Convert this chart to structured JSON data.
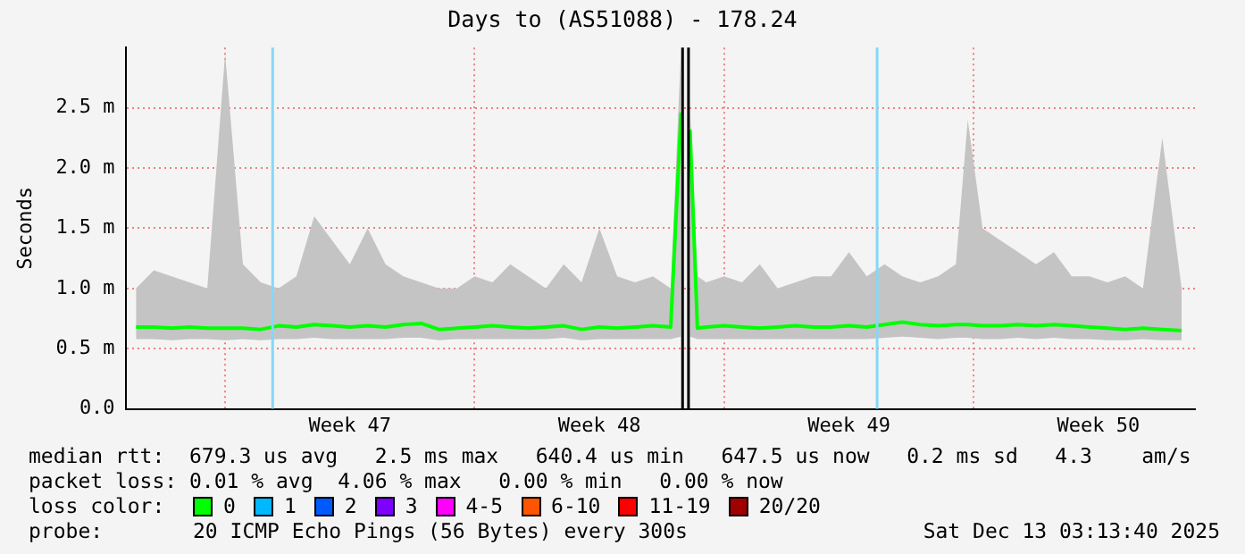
{
  "chart_data": {
    "type": "line",
    "title": "Days to (AS51088) - 178.24",
    "ylabel": "Seconds",
    "x": [
      "2025-11-14T12:00",
      "2025-11-15T00:00",
      "2025-11-15T12:00",
      "2025-11-16T00:00",
      "2025-11-16T12:00",
      "2025-11-17T00:00",
      "2025-11-17T12:00",
      "2025-11-18T00:00",
      "2025-11-18T12:00",
      "2025-11-19T00:00",
      "2025-11-19T12:00",
      "2025-11-20T00:00",
      "2025-11-20T12:00",
      "2025-11-21T00:00",
      "2025-11-21T12:00",
      "2025-11-22T00:00",
      "2025-11-22T12:00",
      "2025-11-23T00:00",
      "2025-11-23T12:00",
      "2025-11-24T00:00",
      "2025-11-24T12:00",
      "2025-11-25T00:00",
      "2025-11-25T12:00",
      "2025-11-26T00:00",
      "2025-11-26T12:00",
      "2025-11-27T00:00",
      "2025-11-27T12:00",
      "2025-11-28T00:00",
      "2025-11-28T12:00",
      "2025-11-29T00:00",
      "2025-11-29T12:00",
      "2025-11-29T19:00",
      "2025-11-29T21:00",
      "2025-11-30T01:00",
      "2025-11-30T06:00",
      "2025-11-30T12:00",
      "2025-12-01T00:00",
      "2025-12-01T12:00",
      "2025-12-02T00:00",
      "2025-12-02T12:00",
      "2025-12-03T00:00",
      "2025-12-03T12:00",
      "2025-12-04T00:00",
      "2025-12-04T12:00",
      "2025-12-05T00:00",
      "2025-12-05T12:00",
      "2025-12-06T00:00",
      "2025-12-06T12:00",
      "2025-12-07T00:00",
      "2025-12-07T12:00",
      "2025-12-07T20:00",
      "2025-12-08T06:00",
      "2025-12-08T18:00",
      "2025-12-09T06:00",
      "2025-12-09T18:00",
      "2025-12-10T06:00",
      "2025-12-10T18:00",
      "2025-12-11T06:00",
      "2025-12-11T18:00",
      "2025-12-12T06:00",
      "2025-12-12T18:00",
      "2025-12-13T07:00",
      "2025-12-13T20:00"
    ],
    "series": [
      {
        "color": "#00ff00",
        "values": [
          0.68,
          0.68,
          0.67,
          0.68,
          0.67,
          0.67,
          0.67,
          0.66,
          0.69,
          0.68,
          0.7,
          0.69,
          0.68,
          0.69,
          0.68,
          0.7,
          0.71,
          0.66,
          0.67,
          0.68,
          0.69,
          0.68,
          0.67,
          0.68,
          0.69,
          0.66,
          0.68,
          0.67,
          0.68,
          0.69,
          0.68,
          2.46,
          null,
          2.32,
          0.67,
          0.68,
          0.69,
          0.68,
          0.67,
          0.68,
          0.69,
          0.68,
          0.68,
          0.69,
          0.68,
          0.7,
          0.72,
          0.7,
          0.69,
          0.7,
          0.7,
          0.69,
          0.69,
          0.7,
          0.69,
          0.7,
          0.69,
          0.68,
          0.67,
          0.66,
          0.67,
          0.66,
          0.65
        ],
        "lower": [
          0.58,
          0.58,
          0.57,
          0.58,
          0.58,
          0.57,
          0.58,
          0.57,
          0.58,
          0.58,
          0.59,
          0.58,
          0.58,
          0.58,
          0.58,
          0.59,
          0.59,
          0.57,
          0.58,
          0.58,
          0.58,
          0.58,
          0.58,
          0.58,
          0.59,
          0.57,
          0.58,
          0.58,
          0.58,
          0.58,
          0.58,
          0.6,
          null,
          0.6,
          0.58,
          0.58,
          0.58,
          0.58,
          0.58,
          0.58,
          0.58,
          0.58,
          0.58,
          0.58,
          0.58,
          0.59,
          0.6,
          0.59,
          0.58,
          0.59,
          0.59,
          0.58,
          0.58,
          0.59,
          0.58,
          0.59,
          0.58,
          0.58,
          0.57,
          0.57,
          0.58,
          0.57,
          0.57
        ],
        "upper": [
          1.0,
          1.15,
          1.1,
          1.05,
          1.0,
          2.95,
          1.2,
          1.05,
          1.0,
          1.1,
          1.6,
          1.4,
          1.2,
          1.5,
          1.2,
          1.1,
          1.05,
          1.0,
          1.0,
          1.1,
          1.05,
          1.2,
          1.1,
          1.0,
          1.2,
          1.05,
          1.5,
          1.1,
          1.05,
          1.1,
          1.0,
          3.0,
          null,
          2.5,
          1.1,
          1.05,
          1.1,
          1.05,
          1.2,
          1.0,
          1.05,
          1.1,
          1.1,
          1.3,
          1.1,
          1.2,
          1.1,
          1.05,
          1.1,
          1.2,
          2.4,
          1.5,
          1.4,
          1.3,
          1.2,
          1.3,
          1.1,
          1.1,
          1.05,
          1.1,
          1.0,
          2.25,
          1.0
        ]
      }
    ],
    "xlim": [
      "2025-11-14T05:00",
      "2025-12-14T05:00"
    ],
    "xticks": [
      {
        "value": "2025-11-17T00:00",
        "label": null
      },
      {
        "value": "2025-11-20T12:00",
        "label": "Week 47"
      },
      {
        "value": "2025-11-24T00:00",
        "label": null
      },
      {
        "value": "2025-11-27T12:00",
        "label": "Week 48"
      },
      {
        "value": "2025-12-01T00:00",
        "label": null
      },
      {
        "value": "2025-12-04T12:00",
        "label": "Week 49"
      },
      {
        "value": "2025-12-08T00:00",
        "label": null
      },
      {
        "value": "2025-12-11T12:00",
        "label": "Week 50"
      }
    ],
    "ylim": [
      0,
      3.0
    ],
    "yticks": [
      {
        "value": 0,
        "label": "0.0"
      },
      {
        "value": 0.5,
        "label": "0.5 m"
      },
      {
        "value": 1.0,
        "label": "1.0 m"
      },
      {
        "value": 1.5,
        "label": "1.5 m"
      },
      {
        "value": 2.0,
        "label": "2.0 m"
      },
      {
        "value": 2.5,
        "label": "2.5 m"
      }
    ],
    "grid": true,
    "legend": false,
    "marker": "none",
    "ref_lines": [
      {
        "axis": "x",
        "value": "2025-11-18T08:00",
        "color": "#87d7f5"
      },
      {
        "axis": "x",
        "value": "2025-11-29T20:00",
        "color": "#000000"
      },
      {
        "axis": "x",
        "value": "2025-11-30T00:00",
        "color": "#000000"
      },
      {
        "axis": "x",
        "value": "2025-12-05T07:00",
        "color": "#87d7f5"
      }
    ],
    "annotations": [
      "median rtt:  679.3 us avg   2.5 ms max   640.4 us min   647.5 us now   0.2 ms sd   4.3    am/s",
      "packet loss: 0.01 % avg  4.06 % max   0.00 % min   0.00 % now",
      "loss color:",
      "0",
      "1",
      "2",
      "3",
      "4-5",
      "6-10",
      "11-19",
      "20/20",
      "probe:",
      "20 ICMP Echo Pings (56 Bytes) every 300s",
      "Sat Dec 13 03:13:40 2025"
    ]
  }
}
